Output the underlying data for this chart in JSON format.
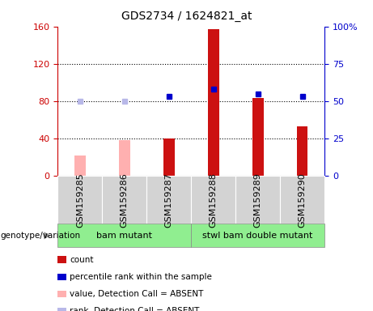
{
  "title": "GDS2734 / 1624821_at",
  "samples": [
    "GSM159285",
    "GSM159286",
    "GSM159287",
    "GSM159288",
    "GSM159289",
    "GSM159290"
  ],
  "bar_values": [
    22,
    38,
    40,
    157,
    83,
    53
  ],
  "bar_colors": [
    "#ffb0b0",
    "#ffb0b0",
    "#cc1111",
    "#cc1111",
    "#cc1111",
    "#cc1111"
  ],
  "absent_flags": [
    true,
    true,
    false,
    false,
    false,
    false
  ],
  "percentile_values": [
    50,
    50,
    53,
    58,
    55,
    53
  ],
  "percentile_absent": [
    true,
    true,
    false,
    false,
    false,
    false
  ],
  "left_ylim": [
    0,
    160
  ],
  "right_ylim": [
    0,
    100
  ],
  "left_yticks": [
    0,
    40,
    80,
    120,
    160
  ],
  "right_yticks": [
    0,
    25,
    50,
    75,
    100
  ],
  "right_yticklabels": [
    "0",
    "25",
    "50",
    "75",
    "100%"
  ],
  "groups": [
    {
      "label": "bam mutant",
      "start": 0,
      "end": 3,
      "color": "#90ee90"
    },
    {
      "label": "stwl bam double mutant",
      "start": 3,
      "end": 6,
      "color": "#90ee90"
    }
  ],
  "group_label_prefix": "genotype/variation",
  "legend_items": [
    {
      "label": "count",
      "color": "#cc1111"
    },
    {
      "label": "percentile rank within the sample",
      "color": "#0000cc"
    },
    {
      "label": "value, Detection Call = ABSENT",
      "color": "#ffb0b0"
    },
    {
      "label": "rank, Detection Call = ABSENT",
      "color": "#b8b8e8"
    }
  ],
  "bar_width": 0.25,
  "left_axis_color": "#cc0000",
  "right_axis_color": "#0000cc",
  "grid_dotted_at": [
    40,
    80,
    120
  ],
  "plot_bg": "#ffffff",
  "tick_box_bg": "#d0d0d0",
  "tick_fontsize": 8,
  "title_fontsize": 10
}
